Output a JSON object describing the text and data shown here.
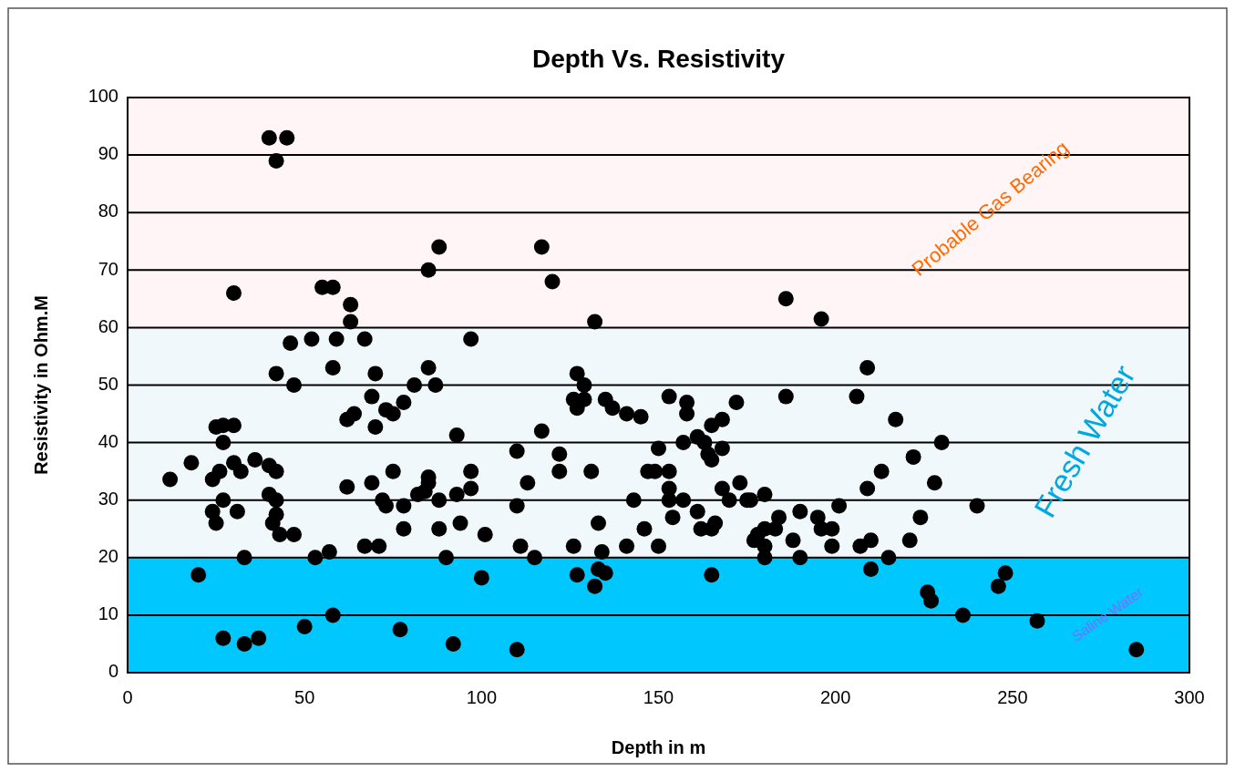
{
  "chart_data": {
    "type": "scatter",
    "title": "Depth Vs. Resistivity",
    "xlabel": "Depth in m",
    "ylabel": "Resistivity in Ohm.M",
    "xlim": [
      0,
      300
    ],
    "xticks": [
      0,
      50,
      100,
      150,
      200,
      250,
      300
    ],
    "ylim": [
      0,
      100
    ],
    "yticks": [
      0,
      10,
      20,
      30,
      40,
      50,
      60,
      70,
      80,
      90,
      100
    ],
    "grid": "y",
    "marker": "circle",
    "bands": [
      {
        "axis": "y",
        "from": 60,
        "to": 100,
        "label": "Probable Gas Bearing",
        "color": "#fff4f6"
      },
      {
        "axis": "y",
        "from": 20,
        "to": 60,
        "label": "Fresh Water",
        "color": "#f0f8fb"
      },
      {
        "axis": "y",
        "from": 0,
        "to": 20,
        "label": "Saline Water",
        "color": "#00c8ff"
      }
    ],
    "series": [
      {
        "color": "#000000",
        "x": [
          12,
          18,
          20,
          24,
          24,
          25,
          25,
          26,
          27,
          27,
          27,
          27,
          30,
          30,
          30,
          31,
          32,
          33,
          33,
          36,
          37,
          40,
          40,
          40,
          41,
          42,
          42,
          42,
          42,
          42,
          43,
          45,
          46,
          47,
          47,
          50,
          52,
          53,
          55,
          57,
          58,
          58,
          58,
          59,
          62,
          62,
          63,
          63,
          64,
          67,
          67,
          69,
          69,
          70,
          70,
          71,
          72,
          73,
          73,
          75,
          75,
          77,
          78,
          78,
          78,
          81,
          82,
          84,
          85,
          85,
          85,
          85,
          87,
          88,
          88,
          88,
          90,
          92,
          93,
          93,
          94,
          97,
          97,
          97,
          100,
          101,
          110,
          110,
          110,
          111,
          113,
          115,
          117,
          117,
          120,
          122,
          122,
          126,
          126,
          127,
          127,
          127,
          129,
          129,
          131,
          132,
          132,
          133,
          133,
          134,
          135,
          135,
          137,
          141,
          141,
          143,
          145,
          146,
          147,
          149,
          150,
          150,
          153,
          153,
          153,
          153,
          154,
          157,
          157,
          158,
          158,
          161,
          161,
          162,
          163,
          164,
          165,
          165,
          165,
          165,
          166,
          168,
          168,
          168,
          170,
          172,
          173,
          175,
          176,
          177,
          178,
          180,
          180,
          180,
          180,
          183,
          184,
          186,
          186,
          188,
          190,
          190,
          195,
          196,
          196,
          199,
          199,
          201,
          206,
          207,
          209,
          209,
          210,
          210,
          213,
          215,
          217,
          221,
          222,
          224,
          226,
          227,
          228,
          230,
          236,
          240,
          246,
          248,
          257,
          285
        ],
        "values": [
          33.6,
          36.5,
          17,
          28,
          33.6,
          42.7,
          26,
          35,
          43,
          40,
          30,
          6,
          43,
          66,
          36.5,
          28,
          35,
          5,
          20,
          37,
          6,
          93,
          31,
          36,
          26,
          89,
          52,
          35,
          30,
          27.5,
          24,
          93,
          57.3,
          50,
          24,
          8,
          58,
          20,
          67,
          21,
          67,
          53,
          10,
          58,
          32.3,
          44,
          61,
          64,
          45,
          58,
          22,
          33,
          48,
          52,
          42.7,
          22,
          30,
          29,
          45.7,
          45,
          35,
          7.5,
          25,
          29,
          47,
          50,
          31,
          31.5,
          70,
          53,
          33,
          34,
          50,
          74,
          30,
          25,
          20,
          5,
          41.3,
          31,
          26,
          58,
          35,
          32,
          16.5,
          24,
          38.5,
          29,
          4,
          22,
          33,
          20,
          74,
          42,
          68,
          38,
          35,
          47.5,
          22,
          52,
          46,
          17,
          50,
          47.5,
          35,
          61,
          15,
          26,
          18,
          21,
          47.5,
          17.3,
          46,
          45,
          22,
          30,
          44.5,
          25,
          35,
          35,
          22,
          39,
          48,
          35,
          30,
          32,
          27,
          40,
          30,
          47,
          45,
          41,
          28,
          25,
          40,
          38,
          43,
          25,
          37,
          17,
          26,
          44,
          39,
          32,
          30,
          47,
          33,
          30,
          30,
          23,
          24,
          25,
          22,
          31,
          20,
          25,
          27,
          65,
          48,
          23,
          28,
          20,
          27,
          61.5,
          25,
          22,
          25,
          29,
          48,
          22,
          32,
          53,
          23,
          18,
          35,
          20,
          44,
          23,
          37.5,
          27,
          14,
          12.5,
          33,
          40,
          10,
          29,
          15,
          17.3,
          9,
          4
        ]
      }
    ]
  }
}
